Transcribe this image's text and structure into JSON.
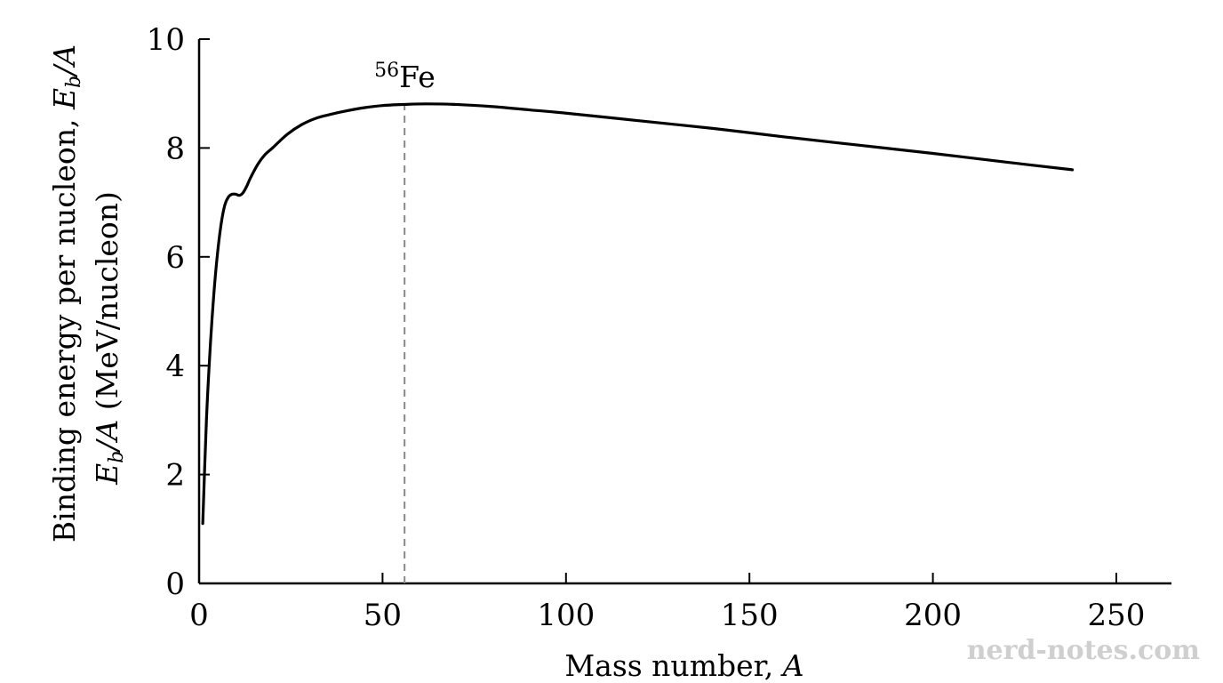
{
  "chart_data": {
    "type": "line",
    "xlabel_text": "Mass number,",
    "xlabel_var": "A",
    "ylabel_line1_text": "Binding energy per nucleon,",
    "ylabel_line1_var": "E",
    "ylabel_line1_sub": "b",
    "ylabel_line1_suffix": "/A",
    "ylabel_line2_var": "E",
    "ylabel_line2_sub": "b",
    "ylabel_line2_suffix": "/A",
    "ylabel_line2_unit": "(MeV/nucleon)",
    "xlim": [
      0,
      265
    ],
    "ylim": [
      0,
      10
    ],
    "x_ticks": [
      0,
      50,
      100,
      150,
      200,
      250
    ],
    "x_tick_labels": [
      "0",
      "50",
      "100",
      "150",
      "200",
      "250"
    ],
    "y_ticks": [
      0,
      2,
      4,
      6,
      8,
      10
    ],
    "y_tick_labels": [
      "0",
      "2",
      "4",
      "6",
      "8",
      "10"
    ],
    "grid": false,
    "series": [
      {
        "color": "#000000",
        "x": [
          1,
          2,
          3,
          4,
          5,
          6,
          7,
          8,
          9,
          10,
          11,
          12,
          13,
          14,
          16,
          18,
          20,
          24,
          28,
          32,
          36,
          40,
          45,
          50,
          56,
          62,
          70,
          80,
          90,
          100,
          120,
          140,
          160,
          180,
          200,
          220,
          238
        ],
        "y": [
          1.1,
          3.0,
          4.3,
          5.3,
          6.05,
          6.6,
          6.95,
          7.1,
          7.15,
          7.15,
          7.13,
          7.18,
          7.3,
          7.45,
          7.7,
          7.88,
          8.0,
          8.25,
          8.43,
          8.55,
          8.62,
          8.68,
          8.74,
          8.78,
          8.8,
          8.81,
          8.8,
          8.76,
          8.7,
          8.64,
          8.5,
          8.36,
          8.2,
          8.05,
          7.9,
          7.74,
          7.6
        ]
      }
    ],
    "annotations": [
      {
        "x": 56,
        "label_sup": "56",
        "label_main": "Fe",
        "line_style": "dashed",
        "line_color": "#888888"
      }
    ]
  },
  "watermark": "nerd-notes.com"
}
